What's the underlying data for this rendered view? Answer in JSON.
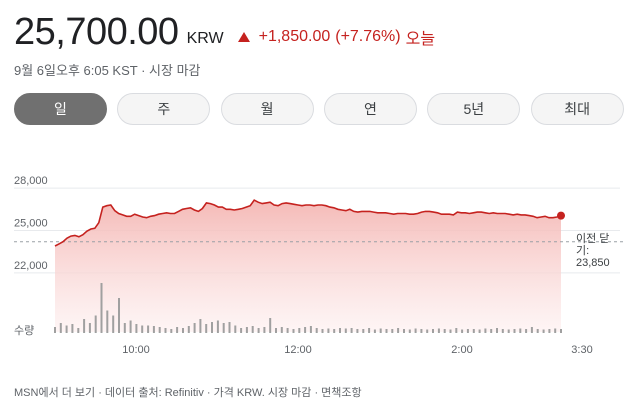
{
  "quote": {
    "price": "25,700.00",
    "currency": "KRW",
    "change": "+1,850.00",
    "change_pct": "(+7.76%)",
    "change_label": "오늘",
    "timestamp": "9월 6일오후 6:05 KST · 시장 마감",
    "colors": {
      "up": "#c5221f",
      "line": "#c5221f",
      "fill_top": "#f4b6b3"
    }
  },
  "tabs": [
    {
      "label": "일",
      "active": true
    },
    {
      "label": "주",
      "active": false
    },
    {
      "label": "월",
      "active": false
    },
    {
      "label": "연",
      "active": false
    },
    {
      "label": "5년",
      "active": false
    },
    {
      "label": "최대",
      "active": false
    }
  ],
  "chart_data": {
    "type": "area",
    "y_ticks": [
      "28,000",
      "25,000",
      "22,000"
    ],
    "y_tick_values": [
      28000,
      25000,
      22000
    ],
    "x_ticks": [
      "10:00",
      "12:00",
      "2:00",
      "3:30"
    ],
    "volume_label": "수량",
    "reference": {
      "label_line1": "이전 닫",
      "label_line2": "기:",
      "value_label": "23,850",
      "value": 23850
    },
    "ylim": [
      21000,
      29000
    ],
    "x": [
      0,
      1,
      2,
      3,
      4,
      5,
      6,
      7,
      8,
      9,
      10,
      11,
      12,
      13,
      14,
      15,
      16,
      17,
      18,
      19,
      20,
      21,
      22,
      23,
      24,
      25,
      26,
      27,
      28,
      29,
      30,
      31,
      32,
      33,
      34,
      35,
      36,
      37,
      38,
      39,
      40,
      41,
      42,
      43,
      44,
      45,
      46,
      47,
      48,
      49,
      50,
      51,
      52,
      53,
      54,
      55,
      56,
      57,
      58,
      59,
      60,
      61,
      62,
      63,
      64,
      65,
      66,
      67,
      68,
      69,
      70,
      71,
      72,
      73,
      74,
      75,
      76,
      77,
      78,
      79,
      80,
      81,
      82,
      83,
      84,
      85,
      86,
      87,
      88,
      89,
      90,
      91,
      92,
      93,
      94,
      95,
      96,
      97,
      98,
      99,
      100,
      101,
      102,
      103,
      104,
      105,
      106,
      107,
      108,
      109,
      110,
      111,
      112,
      113,
      114,
      115,
      116,
      117,
      118,
      119,
      120,
      121,
      122,
      123,
      124,
      125,
      126,
      127
    ],
    "values": [
      23550,
      23700,
      23850,
      24100,
      24250,
      24300,
      24200,
      24350,
      24600,
      24750,
      24800,
      25200,
      26300,
      26400,
      26450,
      26050,
      25850,
      25750,
      25650,
      25650,
      25800,
      25700,
      25600,
      25550,
      25650,
      25700,
      25800,
      25850,
      25900,
      25850,
      25850,
      26000,
      26150,
      26200,
      26250,
      26100,
      26000,
      26200,
      26600,
      26550,
      26450,
      26300,
      26300,
      26150,
      26150,
      26100,
      26150,
      26200,
      26300,
      26400,
      26800,
      26650,
      26550,
      26600,
      26650,
      26450,
      26400,
      26550,
      26600,
      26550,
      26500,
      26450,
      26400,
      26450,
      26450,
      26400,
      26450,
      26450,
      26400,
      26300,
      26250,
      26150,
      26100,
      26050,
      26150,
      26000,
      25950,
      26000,
      26000,
      26000,
      25950,
      25900,
      25900,
      25900,
      25850,
      25800,
      25850,
      25850,
      25850,
      25800,
      25800,
      25850,
      25950,
      26000,
      26000,
      25950,
      25900,
      25800,
      25800,
      25800,
      25750,
      25950,
      25900,
      25900,
      25850,
      25900,
      25950,
      25950,
      25900,
      25850,
      25900,
      25850,
      25850,
      25850,
      25800,
      25750,
      25800,
      25750,
      25750,
      25700,
      25650,
      25550,
      25600,
      25650,
      25550,
      25550,
      25600,
      25700
    ],
    "volume_relative": [
      0.12,
      0.2,
      0.15,
      0.18,
      0.1,
      0.28,
      0.2,
      0.35,
      1.0,
      0.45,
      0.35,
      0.7,
      0.2,
      0.25,
      0.18,
      0.15,
      0.15,
      0.14,
      0.12,
      0.1,
      0.08,
      0.12,
      0.1,
      0.14,
      0.2,
      0.28,
      0.18,
      0.22,
      0.25,
      0.2,
      0.22,
      0.15,
      0.1,
      0.12,
      0.14,
      0.1,
      0.12,
      0.3,
      0.1,
      0.12,
      0.1,
      0.08,
      0.1,
      0.12,
      0.14,
      0.1,
      0.08,
      0.09,
      0.08,
      0.1,
      0.09,
      0.1,
      0.08,
      0.08,
      0.1,
      0.07,
      0.09,
      0.08,
      0.08,
      0.1,
      0.08,
      0.07,
      0.09,
      0.08,
      0.07,
      0.08,
      0.09,
      0.08,
      0.07,
      0.1,
      0.07,
      0.08,
      0.08,
      0.07,
      0.09,
      0.08,
      0.1,
      0.08,
      0.07,
      0.08,
      0.09,
      0.08,
      0.12,
      0.08,
      0.07,
      0.08,
      0.09,
      0.08
    ]
  },
  "footer": "MSN에서 더 보기 · 데이터 출처: Refinitiv · 가격 KRW. 시장 마감 · 면책조항"
}
